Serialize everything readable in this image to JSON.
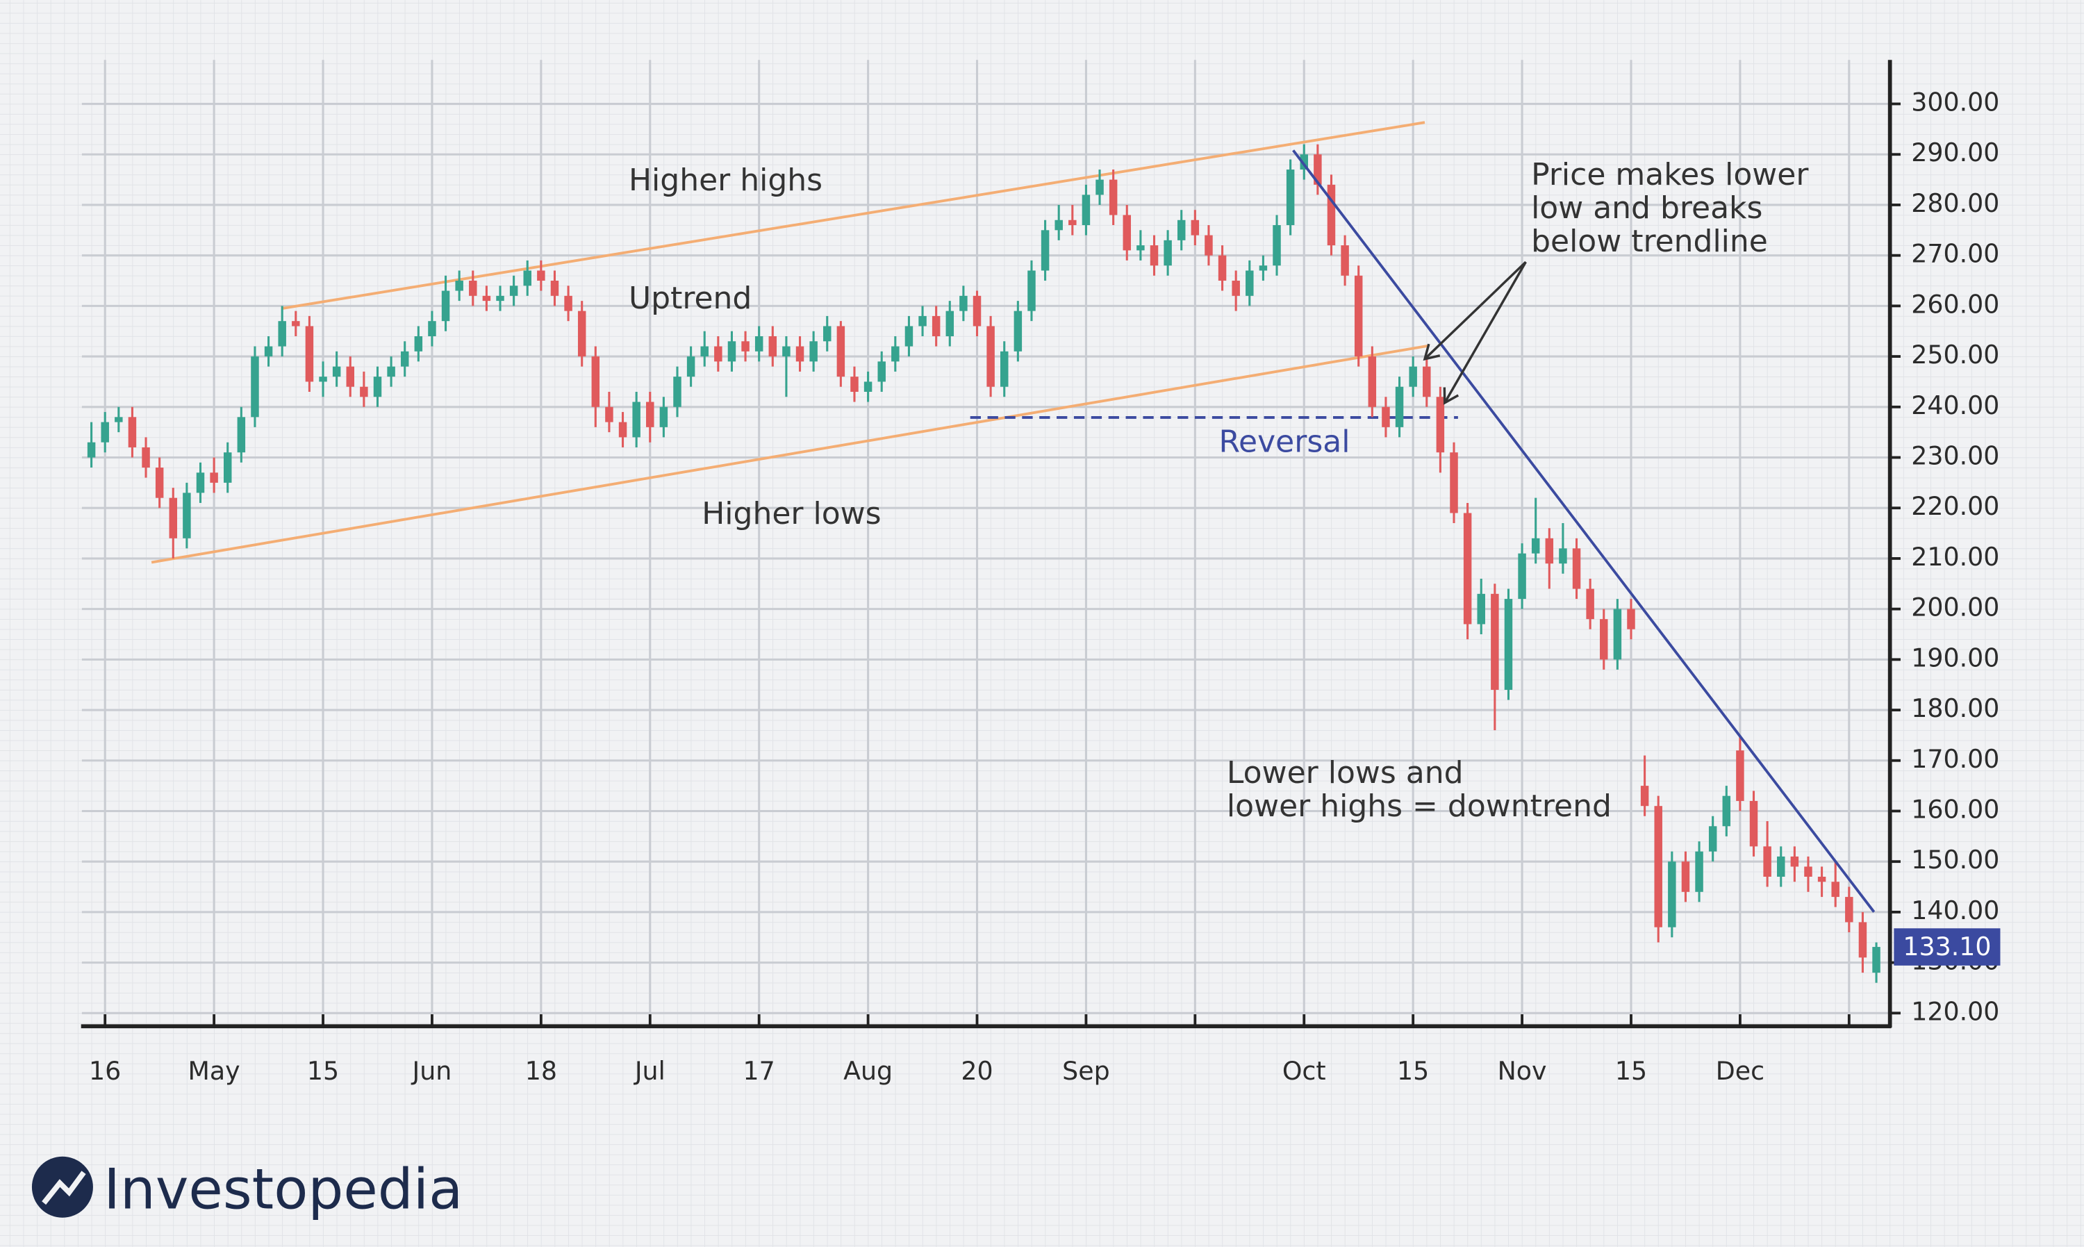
{
  "chart_data": {
    "type": "candlestick",
    "up_color": "#36a38f",
    "down_color": "#e05a5c",
    "x": [
      1,
      2,
      3,
      4,
      5,
      6,
      7,
      8,
      9,
      10,
      11,
      12,
      13,
      14,
      15,
      16,
      17,
      18,
      19,
      20,
      21,
      22,
      23,
      24,
      25,
      26,
      27,
      28,
      29,
      30,
      31,
      32,
      33,
      34,
      35,
      36,
      37,
      38,
      39,
      40,
      41,
      42,
      43,
      44,
      45,
      46,
      47,
      48,
      49,
      50,
      51,
      52,
      53,
      54,
      55,
      56,
      57,
      58,
      59,
      60,
      61,
      62,
      63,
      64,
      65,
      66,
      67,
      68,
      69,
      70,
      71,
      72,
      73,
      74,
      75,
      76,
      77,
      78,
      79,
      80,
      81,
      82,
      83,
      84,
      85,
      86,
      87,
      88,
      89,
      90,
      91,
      92,
      93,
      94,
      95,
      96,
      97,
      98,
      99,
      100,
      101,
      102,
      103,
      104,
      105,
      106,
      107,
      108,
      109,
      110,
      111,
      112,
      113,
      114,
      115,
      116,
      117,
      118,
      119,
      120,
      121,
      122,
      123,
      124,
      125,
      126,
      127,
      128,
      129,
      130,
      131,
      132
    ],
    "open": [
      230,
      233,
      237,
      238,
      232,
      228,
      222,
      214,
      223,
      227,
      225,
      231,
      238,
      250,
      252,
      257,
      256,
      245,
      246,
      248,
      244,
      242,
      246,
      248,
      251,
      254,
      257,
      263,
      265,
      262,
      261,
      262,
      264,
      267,
      265,
      262,
      259,
      250,
      240,
      237,
      234,
      241,
      236,
      240,
      246,
      250,
      252,
      249,
      253,
      251,
      254,
      250,
      252,
      249,
      253,
      256,
      246,
      243,
      245,
      249,
      252,
      256,
      258,
      254,
      259,
      262,
      256,
      244,
      251,
      259,
      267,
      275,
      277,
      276,
      282,
      285,
      278,
      271,
      272,
      268,
      273,
      277,
      274,
      270,
      265,
      262,
      267,
      268,
      276,
      287,
      290,
      284,
      272,
      266,
      250,
      240,
      236,
      244,
      248,
      242,
      231,
      219,
      197,
      203,
      184,
      202,
      211,
      214,
      209,
      212,
      204,
      198,
      190,
      200,
      165,
      161,
      137,
      150,
      144,
      152,
      157,
      172,
      162,
      153,
      147,
      151,
      149,
      147,
      146,
      143,
      138,
      128
    ],
    "high": [
      237,
      239,
      240,
      240,
      234,
      230,
      224,
      225,
      229,
      230,
      233,
      240,
      252,
      254,
      260,
      259,
      258,
      249,
      251,
      250,
      247,
      248,
      250,
      253,
      256,
      259,
      266,
      267,
      267,
      264,
      264,
      266,
      269,
      269,
      267,
      264,
      261,
      252,
      243,
      239,
      243,
      243,
      242,
      248,
      252,
      255,
      254,
      255,
      255,
      256,
      256,
      254,
      254,
      255,
      258,
      257,
      248,
      247,
      251,
      254,
      258,
      260,
      260,
      261,
      264,
      263,
      258,
      253,
      261,
      269,
      277,
      280,
      280,
      284,
      287,
      287,
      280,
      275,
      274,
      275,
      279,
      279,
      276,
      272,
      267,
      269,
      270,
      278,
      289,
      292,
      292,
      286,
      274,
      268,
      252,
      242,
      246,
      250,
      250,
      244,
      233,
      221,
      206,
      205,
      204,
      213,
      222,
      216,
      217,
      214,
      206,
      200,
      202,
      202,
      171,
      163,
      152,
      152,
      154,
      159,
      165,
      175,
      164,
      158,
      153,
      153,
      151,
      149,
      150,
      145,
      140,
      134
    ],
    "low": [
      228,
      231,
      235,
      230,
      226,
      220,
      210,
      212,
      221,
      223,
      223,
      229,
      236,
      248,
      250,
      254,
      243,
      242,
      244,
      242,
      240,
      240,
      244,
      246,
      249,
      252,
      255,
      261,
      260,
      259,
      259,
      260,
      262,
      263,
      260,
      257,
      248,
      236,
      235,
      232,
      232,
      233,
      234,
      238,
      244,
      248,
      247,
      247,
      249,
      249,
      248,
      242,
      247,
      247,
      251,
      244,
      241,
      241,
      243,
      247,
      250,
      254,
      252,
      252,
      257,
      254,
      242,
      242,
      249,
      257,
      265,
      273,
      274,
      274,
      280,
      276,
      269,
      269,
      266,
      266,
      271,
      272,
      268,
      263,
      259,
      260,
      265,
      266,
      274,
      285,
      282,
      270,
      264,
      248,
      238,
      234,
      234,
      242,
      240,
      227,
      217,
      194,
      195,
      176,
      182,
      200,
      209,
      204,
      207,
      202,
      196,
      188,
      188,
      194,
      159,
      134,
      135,
      142,
      142,
      150,
      155,
      160,
      151,
      145,
      145,
      146,
      144,
      143,
      141,
      136,
      128,
      126
    ],
    "close": [
      233,
      237,
      238,
      232,
      228,
      222,
      214,
      223,
      227,
      225,
      231,
      238,
      250,
      252,
      257,
      256,
      245,
      246,
      248,
      244,
      242,
      246,
      248,
      251,
      254,
      257,
      263,
      265,
      262,
      261,
      262,
      264,
      267,
      265,
      262,
      259,
      250,
      240,
      237,
      234,
      241,
      236,
      240,
      246,
      250,
      252,
      249,
      253,
      251,
      254,
      250,
      252,
      249,
      253,
      256,
      246,
      243,
      245,
      249,
      252,
      256,
      258,
      254,
      259,
      262,
      256,
      244,
      251,
      259,
      267,
      275,
      277,
      276,
      282,
      285,
      278,
      271,
      272,
      268,
      273,
      277,
      274,
      270,
      265,
      262,
      267,
      268,
      276,
      287,
      290,
      284,
      272,
      266,
      250,
      240,
      236,
      244,
      248,
      242,
      231,
      219,
      197,
      203,
      184,
      202,
      211,
      214,
      209,
      212,
      204,
      198,
      190,
      200,
      196,
      161,
      137,
      150,
      144,
      152,
      157,
      163,
      162,
      153,
      147,
      151,
      149,
      147,
      146,
      143,
      138,
      131,
      133.1
    ],
    "xlim": [
      0.3,
      133
    ],
    "xticks": [
      {
        "value": 2,
        "label": "16"
      },
      {
        "value": 10,
        "label": "May"
      },
      {
        "value": 18,
        "label": "15"
      },
      {
        "value": 26,
        "label": "Jun"
      },
      {
        "value": 34,
        "label": "18"
      },
      {
        "value": 42,
        "label": "Jul"
      },
      {
        "value": 50,
        "label": "17"
      },
      {
        "value": 58,
        "label": "Aug"
      },
      {
        "value": 66,
        "label": "20"
      },
      {
        "value": 74,
        "label": "Sep"
      },
      {
        "value": 82,
        "label": null
      },
      {
        "value": 90,
        "label": "Oct"
      },
      {
        "value": 98,
        "label": "15"
      },
      {
        "value": 106,
        "label": "Nov"
      },
      {
        "value": 114,
        "label": "15"
      },
      {
        "value": 122,
        "label": "Dec"
      },
      {
        "value": 130,
        "label": null
      }
    ],
    "ylim": [
      117.4,
      308.7
    ],
    "yticks": [
      {
        "value": 120,
        "label": "120.00"
      },
      {
        "value": 130,
        "label": "130.00"
      },
      {
        "value": 140,
        "label": "140.00"
      },
      {
        "value": 150,
        "label": "150.00"
      },
      {
        "value": 160,
        "label": "160.00"
      },
      {
        "value": 170,
        "label": "170.00"
      },
      {
        "value": 180,
        "label": "180.00"
      },
      {
        "value": 190,
        "label": "190.00"
      },
      {
        "value": 200,
        "label": "200.00"
      },
      {
        "value": 210,
        "label": "210.00"
      },
      {
        "value": 220,
        "label": "220.00"
      },
      {
        "value": 230,
        "label": "230.00"
      },
      {
        "value": 240,
        "label": "240.00"
      },
      {
        "value": 250,
        "label": "250.00"
      },
      {
        "value": 260,
        "label": "260.00"
      },
      {
        "value": 270,
        "label": "270.00"
      },
      {
        "value": 280,
        "label": "280.00"
      },
      {
        "value": 290,
        "label": "290.00"
      },
      {
        "value": 300,
        "label": "300.00"
      }
    ],
    "grid": true,
    "last_price": {
      "value": 133.1,
      "label": "133.10"
    },
    "last_price_color": "#3b4aa0",
    "annotations": {
      "higher_highs": "Higher highs",
      "uptrend": "Uptrend",
      "higher_lows": "Higher lows",
      "reversal": "Reversal",
      "breakdown": [
        "Price makes lower",
        "low and breaks",
        "below trendline"
      ],
      "downtrend": [
        "Lower lows and",
        "lower highs = downtrend"
      ]
    }
  },
  "logo": "Investopedia"
}
